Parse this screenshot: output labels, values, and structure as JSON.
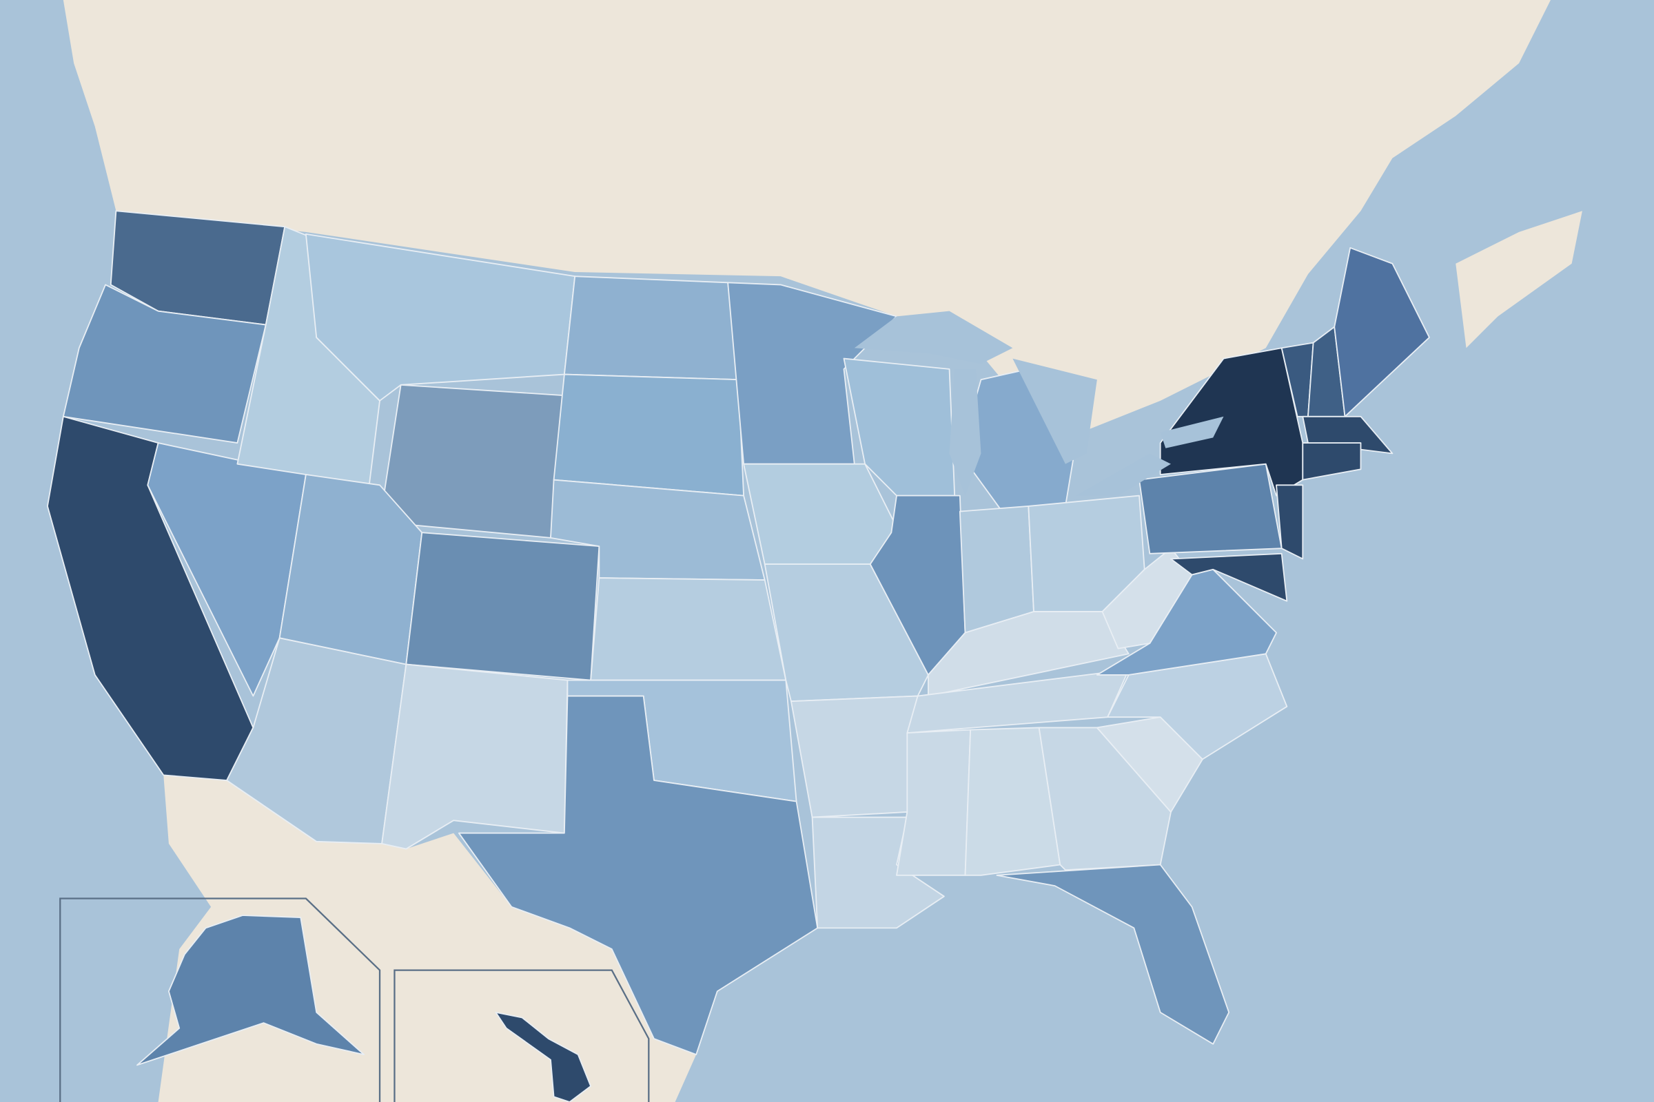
{
  "map": {
    "colors": {
      "ocean": "#a9c3d9",
      "land_foreign": "#ede6da",
      "lakes": "#a7c2d9",
      "inset_border": "#5a6f86",
      "state_border": "#e8eef4"
    },
    "states": [
      {
        "id": "WA",
        "fill": "#4a6a8e"
      },
      {
        "id": "OR",
        "fill": "#6f95bb"
      },
      {
        "id": "CA",
        "fill": "#2e4a6c"
      },
      {
        "id": "NV",
        "fill": "#7ca2c8"
      },
      {
        "id": "ID",
        "fill": "#b3cde0"
      },
      {
        "id": "MT",
        "fill": "#a9c6dd"
      },
      {
        "id": "WY",
        "fill": "#7d9cbb"
      },
      {
        "id": "UT",
        "fill": "#8fb1d0"
      },
      {
        "id": "CO",
        "fill": "#6a8eb2"
      },
      {
        "id": "AZ",
        "fill": "#b0c8dc"
      },
      {
        "id": "NM",
        "fill": "#c6d7e5"
      },
      {
        "id": "ND",
        "fill": "#8fb1d0"
      },
      {
        "id": "SD",
        "fill": "#8ab0d0"
      },
      {
        "id": "NE",
        "fill": "#9cbbd6"
      },
      {
        "id": "KS",
        "fill": "#b5cde0"
      },
      {
        "id": "OK",
        "fill": "#a5c2db"
      },
      {
        "id": "TX",
        "fill": "#6f95bb"
      },
      {
        "id": "MN",
        "fill": "#7a9fc4"
      },
      {
        "id": "IA",
        "fill": "#b3cde0"
      },
      {
        "id": "MO",
        "fill": "#b5cde0"
      },
      {
        "id": "AR",
        "fill": "#c6d7e5"
      },
      {
        "id": "LA",
        "fill": "#c3d5e4"
      },
      {
        "id": "WI",
        "fill": "#9fbfd9"
      },
      {
        "id": "IL",
        "fill": "#6d93ba"
      },
      {
        "id": "MI",
        "fill": "#86aacd"
      },
      {
        "id": "IN",
        "fill": "#b0c9dd"
      },
      {
        "id": "OH",
        "fill": "#b5cde0"
      },
      {
        "id": "KY",
        "fill": "#d0dde8"
      },
      {
        "id": "TN",
        "fill": "#c6d7e5"
      },
      {
        "id": "MS",
        "fill": "#c9d9e6"
      },
      {
        "id": "AL",
        "fill": "#cbdbe7"
      },
      {
        "id": "GA",
        "fill": "#c6d7e5"
      },
      {
        "id": "FL",
        "fill": "#6f95bb"
      },
      {
        "id": "SC",
        "fill": "#d4e0ea"
      },
      {
        "id": "NC",
        "fill": "#bcd1e3"
      },
      {
        "id": "VA",
        "fill": "#7ca2c8"
      },
      {
        "id": "WV",
        "fill": "#d4e0ea"
      },
      {
        "id": "PA",
        "fill": "#5d83ab"
      },
      {
        "id": "NY",
        "fill": "#1f3552"
      },
      {
        "id": "NJ",
        "fill": "#2e4a6c"
      },
      {
        "id": "MD",
        "fill": "#2e4a6c"
      },
      {
        "id": "VT",
        "fill": "#3a5a80"
      },
      {
        "id": "NH",
        "fill": "#3f6086"
      },
      {
        "id": "ME",
        "fill": "#4f72a0"
      },
      {
        "id": "MA",
        "fill": "#2e4a6c"
      },
      {
        "id": "CT",
        "fill": "#2e4a6c"
      },
      {
        "id": "AK",
        "fill": "#5d83ab"
      },
      {
        "id": "HI",
        "fill": "#2e4a6c"
      }
    ]
  }
}
